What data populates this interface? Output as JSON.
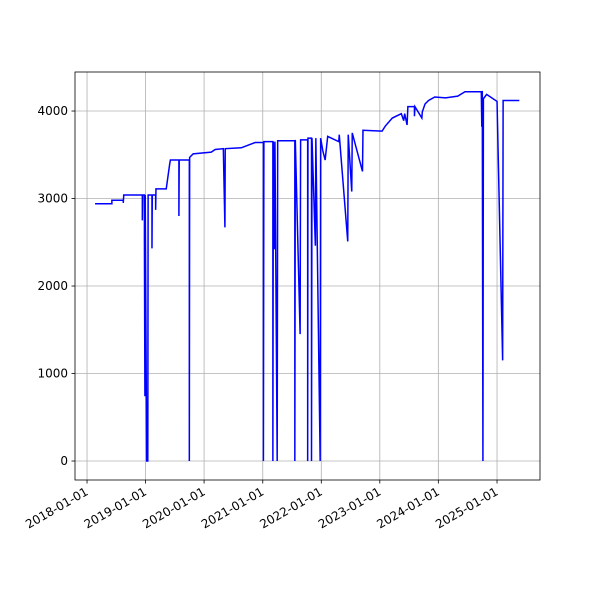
{
  "chart_data": {
    "type": "line",
    "grid": true,
    "xlim": [
      "2017-10-18",
      "2025-09-26"
    ],
    "ylim": [
      -217,
      4446
    ],
    "xticks": [
      "2018-01-01",
      "2019-01-01",
      "2020-01-01",
      "2021-01-01",
      "2022-01-01",
      "2023-01-01",
      "2024-01-01",
      "2025-01-01"
    ],
    "yticks": [
      0,
      1000,
      2000,
      3000,
      4000
    ],
    "series": [
      {
        "color": "#0000ff",
        "x": [
          "2018-02-20",
          "2018-06-05",
          "2018-06-05",
          "2018-08-15",
          "2018-08-15",
          "2018-08-18",
          "2018-12-12",
          "2018-12-12",
          "2018-12-14",
          "2018-12-25",
          "2018-12-25",
          "2018-12-28",
          "2018-12-30",
          "2019-01-08",
          "2019-01-15",
          "2019-01-17",
          "2019-02-10",
          "2019-02-10",
          "2019-02-12",
          "2019-03-05",
          "2019-03-05",
          "2019-03-07",
          "2019-05-10",
          "2019-06-01",
          "2019-06-05",
          "2019-07-28",
          "2019-07-28",
          "2019-07-30",
          "2019-10-01",
          "2019-10-01",
          "2019-10-03",
          "2019-10-25",
          "2020-02-15",
          "2020-03-10",
          "2020-04-30",
          "2020-05-10",
          "2020-05-12",
          "2020-08-20",
          "2020-11-15",
          "2021-01-05",
          "2021-01-05",
          "2021-01-08",
          "2021-03-05",
          "2021-03-05",
          "2021-03-08",
          "2021-03-15",
          "2021-03-18",
          "2021-04-01",
          "2021-04-04",
          "2021-07-20",
          "2021-07-20",
          "2021-07-23",
          "2021-08-22",
          "2021-08-25",
          "2021-10-08",
          "2021-10-08",
          "2021-10-10",
          "2021-11-01",
          "2021-11-01",
          "2021-11-04",
          "2021-11-25",
          "2021-11-28",
          "2021-12-25",
          "2021-12-28",
          "2022-01-10",
          "2022-01-25",
          "2022-02-10",
          "2022-04-20",
          "2022-04-23",
          "2022-06-15",
          "2022-06-18",
          "2022-07-10",
          "2022-07-13",
          "2022-09-15",
          "2022-09-18",
          "2023-01-15",
          "2023-02-05",
          "2023-03-20",
          "2023-05-15",
          "2023-05-30",
          "2023-06-05",
          "2023-06-20",
          "2023-06-25",
          "2023-08-05",
          "2023-08-05",
          "2023-08-08",
          "2023-09-20",
          "2023-09-23",
          "2023-10-10",
          "2023-11-01",
          "2023-12-10",
          "2024-02-15",
          "2024-05-01",
          "2024-06-15",
          "2024-09-25",
          "2024-09-28",
          "2024-10-01",
          "2024-10-05",
          "2024-10-08",
          "2024-10-28",
          "2025-01-01",
          "2025-02-05",
          "2025-02-08",
          "2025-05-20"
        ],
        "values": [
          2940,
          2940,
          2980,
          2980,
          2950,
          3040,
          3040,
          2750,
          3040,
          3040,
          2530,
          740,
          3040,
          0,
          0,
          3040,
          3040,
          2430,
          3040,
          3040,
          2870,
          3110,
          3110,
          3400,
          3440,
          3440,
          2800,
          3440,
          3440,
          0,
          3470,
          3510,
          3530,
          3560,
          3570,
          2670,
          3570,
          3580,
          3640,
          3640,
          0,
          3650,
          3650,
          0,
          3650,
          2420,
          3650,
          0,
          3660,
          3660,
          0,
          3670,
          1450,
          3670,
          3670,
          0,
          3690,
          3690,
          0,
          3690,
          2460,
          3690,
          0,
          3690,
          3550,
          3440,
          3710,
          3650,
          3730,
          2510,
          3730,
          3080,
          3750,
          3310,
          3780,
          3770,
          3830,
          3920,
          3970,
          3890,
          3970,
          3840,
          4050,
          4050,
          3940,
          4050,
          3920,
          3990,
          4080,
          4120,
          4160,
          4150,
          4170,
          4220,
          4220,
          3820,
          4230,
          0,
          4140,
          4190,
          4110,
          1150,
          4120,
          4120
        ]
      }
    ]
  }
}
